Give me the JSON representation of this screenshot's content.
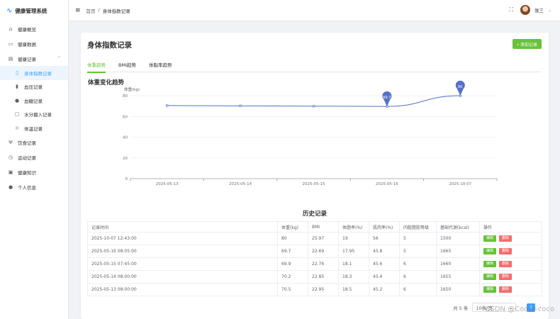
{
  "app": {
    "title": "健康管理系统"
  },
  "sidebar": {
    "items": [
      {
        "label": "健康概览",
        "icon": "home-icon"
      },
      {
        "label": "健康数据",
        "icon": "chart-icon"
      },
      {
        "label": "健康记录",
        "icon": "record-icon",
        "expanded": true
      },
      {
        "label": "身体指数记录",
        "icon": "document-icon",
        "active": true
      },
      {
        "label": "血压记录",
        "icon": "bar-icon"
      },
      {
        "label": "血糖记录",
        "icon": "drop-icon"
      },
      {
        "label": "水分摄入记录",
        "icon": "cup-icon"
      },
      {
        "label": "体温记录",
        "icon": "sun-icon"
      },
      {
        "label": "饮食记录",
        "icon": "fork-icon"
      },
      {
        "label": "运动记录",
        "icon": "clock-icon"
      },
      {
        "label": "健康知识",
        "icon": "book-icon"
      },
      {
        "label": "个人信息",
        "icon": "user-icon"
      }
    ]
  },
  "header": {
    "breadcrumb": [
      "首页",
      "/",
      "身体指数记录"
    ],
    "username": "张三"
  },
  "main": {
    "title": "身体指数记录",
    "add_label": "+ 添加记录",
    "tabs": [
      {
        "label": "体重趋势",
        "active": true
      },
      {
        "label": "BMI趋势"
      },
      {
        "label": "体脂率趋势"
      }
    ],
    "chart_title": "体重变化趋势",
    "history_title": "历史记录"
  },
  "chart_data": {
    "type": "line",
    "ylabel": "体重(kg)",
    "x": [
      "2025-05-13",
      "2025-05-14",
      "2025-05-15",
      "2025-05-16",
      "2025-10-07"
    ],
    "values": [
      70.5,
      70.2,
      69.9,
      69.7,
      80
    ],
    "ylim": [
      0,
      80
    ],
    "yticks": [
      0,
      20,
      40,
      60,
      80
    ],
    "annotations": [
      {
        "x": "2025-05-16",
        "label": "69.7"
      },
      {
        "x": "2025-10-07",
        "label": "80"
      }
    ],
    "color": "#5470c6",
    "marker_color": "#5470c6",
    "grid": true
  },
  "table": {
    "columns": [
      "记录时间",
      "体重(kg)",
      "BMI",
      "体脂率(%)",
      "肌肉率(%)",
      "内脏脂肪等级",
      "基础代谢(kcal)",
      "操作"
    ],
    "rows": [
      [
        "2025-10-07 12:43:00",
        "80",
        "25.97",
        "19",
        "56",
        "5",
        "1500"
      ],
      [
        "2025-05-16 08:05:00",
        "69.7",
        "22.69",
        "17.95",
        "45.8",
        "5",
        "1665"
      ],
      [
        "2025-05-15 07:45:00",
        "69.9",
        "22.76",
        "18.1",
        "45.6",
        "6",
        "1660"
      ],
      [
        "2025-05-14 08:00:00",
        "70.2",
        "22.85",
        "18.3",
        "45.4",
        "6",
        "1655"
      ],
      [
        "2025-05-13 08:00:00",
        "70.5",
        "22.95",
        "18.5",
        "45.2",
        "6",
        "1650"
      ]
    ],
    "edit_label": "编辑",
    "delete_label": "删除"
  },
  "pagination": {
    "total_label": "共 5 条",
    "page_size": "10条/页",
    "current_page": "1"
  },
  "watermark": "CSDN @Coder-coco"
}
